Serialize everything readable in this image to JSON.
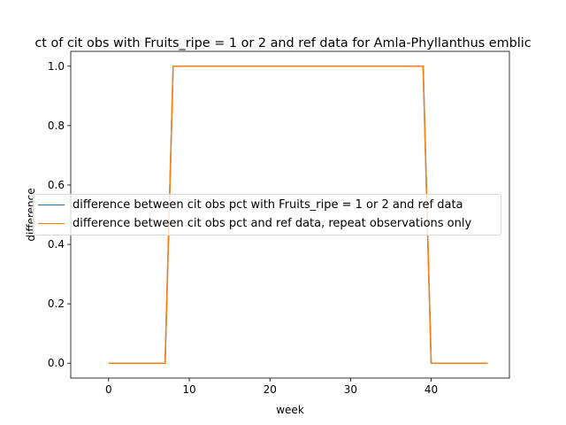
{
  "chart_data": {
    "type": "line",
    "title": "ct of cit obs with Fruits_ripe = 1 or 2 and ref data for Amla-Phyllanthus emblic",
    "xlabel": "week",
    "ylabel": "difference",
    "xlim": [
      -4.7,
      49.7
    ],
    "ylim": [
      -0.05,
      1.05
    ],
    "xticks": [
      0,
      10,
      20,
      30,
      40
    ],
    "yticks": [
      0.0,
      0.2,
      0.4,
      0.6,
      0.8,
      1.0
    ],
    "xtick_labels": [
      "0",
      "10",
      "20",
      "30",
      "40"
    ],
    "ytick_labels": [
      "0.0",
      "0.2",
      "0.4",
      "0.6",
      "0.8",
      "1.0"
    ],
    "legend_position": "center-left",
    "series": [
      {
        "name": "difference between cit obs pct with Fruits_ripe = 1 or 2 and ref data",
        "color": "#1f77b4",
        "x": [
          0,
          1,
          2,
          3,
          4,
          5,
          6,
          7,
          8,
          9,
          10,
          11,
          12,
          13,
          14,
          15,
          16,
          17,
          18,
          19,
          20,
          21,
          22,
          23,
          24,
          25,
          26,
          27,
          28,
          29,
          30,
          31,
          32,
          33,
          34,
          35,
          36,
          37,
          38,
          39,
          40,
          41,
          42,
          43,
          44,
          45,
          46,
          47
        ],
        "y": [
          0,
          0,
          0,
          0,
          0,
          0,
          0,
          0,
          1,
          1,
          1,
          1,
          1,
          1,
          1,
          1,
          1,
          1,
          1,
          1,
          1,
          1,
          1,
          1,
          1,
          1,
          1,
          1,
          1,
          1,
          1,
          1,
          1,
          1,
          1,
          1,
          1,
          1,
          1,
          1,
          0,
          0,
          0,
          0,
          0,
          0,
          0,
          0
        ]
      },
      {
        "name": "difference between cit obs pct and ref data, repeat observations only",
        "color": "#ff7f0e",
        "x": [
          0,
          1,
          2,
          3,
          4,
          5,
          6,
          7,
          8,
          9,
          10,
          11,
          12,
          13,
          14,
          15,
          16,
          17,
          18,
          19,
          20,
          21,
          22,
          23,
          24,
          25,
          26,
          27,
          28,
          29,
          30,
          31,
          32,
          33,
          34,
          35,
          36,
          37,
          38,
          39,
          40,
          41,
          42,
          43,
          44,
          45,
          46,
          47
        ],
        "y": [
          0,
          0,
          0,
          0,
          0,
          0,
          0,
          0,
          1,
          1,
          1,
          1,
          1,
          1,
          1,
          1,
          1,
          1,
          1,
          1,
          1,
          1,
          1,
          1,
          1,
          1,
          1,
          1,
          1,
          1,
          1,
          1,
          1,
          1,
          1,
          1,
          1,
          1,
          1,
          1,
          0,
          0,
          0,
          0,
          0,
          0,
          0,
          0
        ]
      }
    ]
  }
}
